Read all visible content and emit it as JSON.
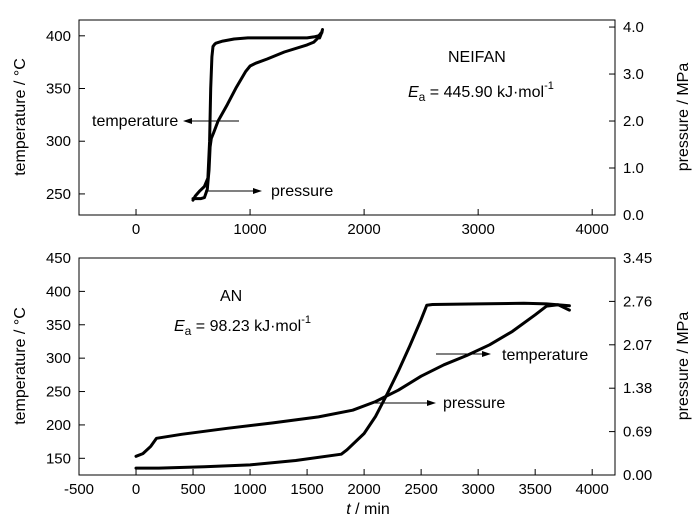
{
  "chart_data": [
    {
      "type": "line",
      "annotation_label": "NEIFAN",
      "ea_symbol": "E",
      "ea_subscript": "a",
      "ea_value": " = 445.90 kJ·mol",
      "ea_superscript": "-1",
      "left_axis": {
        "label": "temperature / °C",
        "ylim": [
          230,
          415
        ],
        "ticks": [
          250,
          300,
          350,
          400
        ],
        "tick_labels": [
          "250",
          "300",
          "350",
          "400"
        ]
      },
      "right_axis": {
        "label": "pressure / MPa",
        "ylim": [
          0.0,
          4.15
        ],
        "ticks": [
          0.0,
          1.0,
          2.0,
          3.0,
          4.0
        ],
        "tick_labels": [
          "0.0",
          "1.0",
          "2.0",
          "3.0",
          "4.0"
        ]
      },
      "x_axis": {
        "label": "",
        "xlim": [
          -500,
          4200
        ],
        "ticks": [
          0,
          1000,
          2000,
          3000,
          4000
        ],
        "tick_labels": [
          "0",
          "1000",
          "2000",
          "3000",
          "4000"
        ]
      },
      "series": [
        {
          "name": "temperature",
          "axis": "left",
          "x": [
            500,
            520,
            560,
            600,
            630,
            645,
            655,
            665,
            675,
            690,
            700,
            760,
            860,
            980,
            1080,
            1200,
            1300,
            1400,
            1500,
            1560,
            1600,
            1630,
            1635,
            1625,
            1610
          ],
          "y": [
            244,
            248,
            253,
            257,
            265,
            300,
            350,
            380,
            390,
            392,
            393,
            395,
            397,
            398,
            398,
            398,
            398,
            398,
            398,
            399,
            400,
            403,
            406,
            402,
            398
          ]
        },
        {
          "name": "pressure",
          "axis": "right",
          "x": [
            500,
            540,
            570,
            600,
            625,
            640,
            650,
            660,
            680,
            720,
            800,
            880,
            960,
            1000,
            1050,
            1150,
            1300,
            1500,
            1560,
            1600,
            1620
          ],
          "y": [
            0.35,
            0.35,
            0.35,
            0.37,
            0.55,
            0.95,
            1.45,
            1.63,
            1.75,
            2.0,
            2.35,
            2.72,
            3.05,
            3.17,
            3.23,
            3.32,
            3.47,
            3.62,
            3.68,
            3.78,
            3.87
          ]
        }
      ],
      "arrow_labels": {
        "temperature": "temperature",
        "pressure": "pressure"
      }
    },
    {
      "type": "line",
      "annotation_label": "AN",
      "ea_symbol": "E",
      "ea_subscript": "a",
      "ea_value": " = 98.23 kJ·mol",
      "ea_superscript": "-1",
      "left_axis": {
        "label": "temperature / °C",
        "ylim": [
          125,
          450
        ],
        "ticks": [
          150,
          200,
          250,
          300,
          350,
          400,
          450
        ],
        "tick_labels": [
          "150",
          "200",
          "250",
          "300",
          "350",
          "400",
          "450"
        ]
      },
      "right_axis": {
        "label": "pressure / MPa",
        "ylim": [
          0.0,
          3.45
        ],
        "ticks": [
          0.0,
          0.69,
          1.38,
          2.07,
          2.76,
          3.45
        ],
        "tick_labels": [
          "0.00",
          "0.69",
          "1.38",
          "2.07",
          "2.76",
          "3.45"
        ]
      },
      "x_axis": {
        "label_italic": "t",
        "label_rest": " / min",
        "xlim": [
          -500,
          4200
        ],
        "ticks": [
          -500,
          0,
          500,
          1000,
          1500,
          2000,
          2500,
          3000,
          3500,
          4000
        ],
        "tick_labels": [
          "-500",
          "0",
          "500",
          "1000",
          "1500",
          "2000",
          "2500",
          "3000",
          "3500",
          "4000"
        ]
      },
      "series": [
        {
          "name": "temperature",
          "axis": "left",
          "x": [
            0,
            60,
            130,
            180,
            400,
            800,
            1200,
            1600,
            1900,
            2100,
            2300,
            2500,
            2700,
            2900,
            3100,
            3300,
            3500,
            3600,
            3700,
            3800
          ],
          "y": [
            153,
            157,
            168,
            180,
            186,
            195,
            203,
            212,
            222,
            235,
            252,
            273,
            290,
            304,
            320,
            340,
            365,
            378,
            380,
            372
          ]
        },
        {
          "name": "pressure",
          "axis": "right",
          "x": [
            0,
            200,
            600,
            1000,
            1400,
            1800,
            1850,
            2000,
            2100,
            2200,
            2300,
            2400,
            2500,
            2550,
            2600,
            3000,
            3400,
            3600,
            3800
          ],
          "y": [
            0.11,
            0.11,
            0.13,
            0.16,
            0.23,
            0.33,
            0.4,
            0.66,
            0.93,
            1.28,
            1.65,
            2.05,
            2.47,
            2.7,
            2.71,
            2.72,
            2.73,
            2.72,
            2.69
          ]
        }
      ],
      "arrow_labels": {
        "temperature": "temperature",
        "pressure": "pressure"
      }
    }
  ]
}
